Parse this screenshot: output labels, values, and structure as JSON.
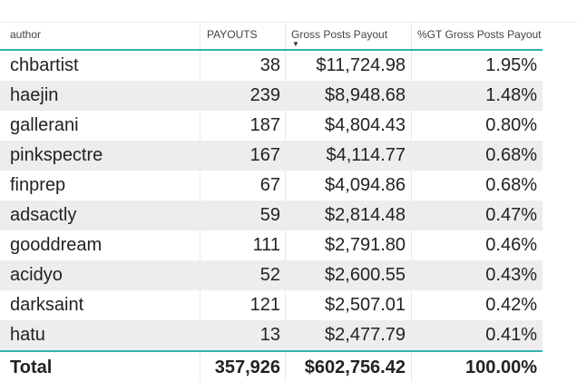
{
  "table": {
    "headers": {
      "author": "author",
      "payouts": "PAYOUTS",
      "gross": "Gross Posts Payout",
      "pct": "%GT Gross Posts Payout"
    },
    "sort": {
      "column": "Gross Posts Payout",
      "direction": "descending"
    },
    "rows": [
      {
        "author": "chbartist",
        "payouts": "38",
        "gross": "$11,724.98",
        "pct": "1.95%"
      },
      {
        "author": "haejin",
        "payouts": "239",
        "gross": "$8,948.68",
        "pct": "1.48%"
      },
      {
        "author": "gallerani",
        "payouts": "187",
        "gross": "$4,804.43",
        "pct": "0.80%"
      },
      {
        "author": "pinkspectre",
        "payouts": "167",
        "gross": "$4,114.77",
        "pct": "0.68%"
      },
      {
        "author": "finprep",
        "payouts": "67",
        "gross": "$4,094.86",
        "pct": "0.68%"
      },
      {
        "author": "adsactly",
        "payouts": "59",
        "gross": "$2,814.48",
        "pct": "0.47%"
      },
      {
        "author": "gooddream",
        "payouts": "111",
        "gross": "$2,791.80",
        "pct": "0.46%"
      },
      {
        "author": "acidyo",
        "payouts": "52",
        "gross": "$2,600.55",
        "pct": "0.43%"
      },
      {
        "author": "darksaint",
        "payouts": "121",
        "gross": "$2,507.01",
        "pct": "0.42%"
      },
      {
        "author": "hatu",
        "payouts": "13",
        "gross": "$2,477.79",
        "pct": "0.41%"
      }
    ],
    "total": {
      "label": "Total",
      "payouts": "357,926",
      "gross": "$602,756.42",
      "pct": "100.00%"
    }
  },
  "colors": {
    "accent": "#35b3ad",
    "alt_row": "#ededed"
  }
}
